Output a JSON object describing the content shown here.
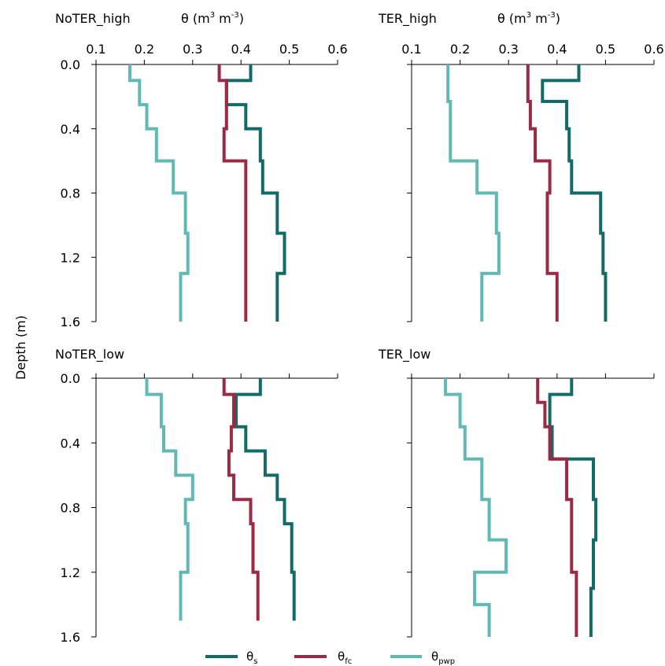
{
  "y_axis_label": "Depth (m)",
  "x_axis_label_html": {
    "base": "θ (m",
    "sup1": "3",
    "mid": " m",
    "sup2": "-3",
    "end": ")"
  },
  "legend": [
    {
      "key": "theta_s",
      "base": "θ",
      "sub": "s",
      "color": "#126b67"
    },
    {
      "key": "theta_fc",
      "base": "θ",
      "sub": "fc",
      "color": "#9a2a45"
    },
    {
      "key": "theta_pwp",
      "base": "θ",
      "sub": "pwp",
      "color": "#61b8b4"
    }
  ],
  "chart_data": [
    {
      "type": "line",
      "title": "NoTER_high",
      "xlabel": "θ (m3 m-3)",
      "ylabel": "Depth (m)",
      "xlim": [
        0.1,
        0.6
      ],
      "xticks": [
        "0.1",
        "0.2",
        "0.3",
        "0.4",
        "0.5",
        "0.6"
      ],
      "ylim": [
        0.0,
        1.6
      ],
      "yticks": [
        "0.0",
        "0.4",
        "0.8",
        "1.2",
        "1.6"
      ],
      "series": [
        {
          "name": "θs",
          "color": "#126b67",
          "x": [
            0.42,
            0.42,
            0.37,
            0.37,
            0.41,
            0.41,
            0.44,
            0.44,
            0.445,
            0.445,
            0.475,
            0.475,
            0.49,
            0.49,
            0.475,
            0.475
          ],
          "y": [
            0.0,
            0.1,
            0.1,
            0.25,
            0.25,
            0.4,
            0.4,
            0.6,
            0.6,
            0.8,
            0.8,
            1.05,
            1.05,
            1.3,
            1.3,
            1.6
          ]
        },
        {
          "name": "θfc",
          "color": "#9a2a45",
          "x": [
            0.355,
            0.355,
            0.37,
            0.37,
            0.365,
            0.365,
            0.41,
            0.41
          ],
          "y": [
            0.0,
            0.1,
            0.1,
            0.4,
            0.4,
            0.6,
            0.6,
            1.6
          ]
        },
        {
          "name": "θpwp",
          "color": "#61b8b4",
          "x": [
            0.17,
            0.17,
            0.19,
            0.19,
            0.205,
            0.205,
            0.225,
            0.225,
            0.26,
            0.26,
            0.285,
            0.285,
            0.29,
            0.29,
            0.275,
            0.275
          ],
          "y": [
            0.0,
            0.1,
            0.1,
            0.25,
            0.25,
            0.4,
            0.4,
            0.6,
            0.6,
            0.8,
            0.8,
            1.05,
            1.05,
            1.3,
            1.3,
            1.6
          ]
        }
      ]
    },
    {
      "type": "line",
      "title": "TER_high",
      "xlabel": "θ (m3 m-3)",
      "ylabel": "Depth (m)",
      "xlim": [
        0.1,
        0.6
      ],
      "xticks": [
        "0.1",
        "0.2",
        "0.3",
        "0.4",
        "0.5",
        "0.6"
      ],
      "ylim": [
        0.0,
        1.6
      ],
      "yticks": [
        "0.0",
        "0.4",
        "0.8",
        "1.2",
        "1.6"
      ],
      "series": [
        {
          "name": "θs",
          "color": "#126b67",
          "x": [
            0.445,
            0.445,
            0.37,
            0.37,
            0.42,
            0.42,
            0.425,
            0.425,
            0.43,
            0.43,
            0.49,
            0.49,
            0.495,
            0.495,
            0.5,
            0.5
          ],
          "y": [
            0.0,
            0.1,
            0.1,
            0.23,
            0.23,
            0.4,
            0.4,
            0.6,
            0.6,
            0.8,
            0.8,
            1.05,
            1.05,
            1.3,
            1.3,
            1.6
          ]
        },
        {
          "name": "θfc",
          "color": "#9a2a45",
          "x": [
            0.34,
            0.34,
            0.345,
            0.345,
            0.355,
            0.355,
            0.385,
            0.385,
            0.38,
            0.38,
            0.4,
            0.4
          ],
          "y": [
            0.0,
            0.23,
            0.23,
            0.4,
            0.4,
            0.6,
            0.6,
            0.8,
            0.8,
            1.3,
            1.3,
            1.6
          ]
        },
        {
          "name": "θpwp",
          "color": "#61b8b4",
          "x": [
            0.175,
            0.175,
            0.175,
            0.18,
            0.18,
            0.235,
            0.235,
            0.275,
            0.275,
            0.28,
            0.28,
            0.245,
            0.245
          ],
          "y": [
            0.0,
            0.23,
            0.23,
            0.23,
            0.6,
            0.6,
            0.8,
            0.8,
            1.05,
            1.05,
            1.3,
            1.3,
            1.6
          ]
        }
      ]
    },
    {
      "type": "line",
      "title": "NoTER_low",
      "xlabel": "",
      "ylabel": "Depth (m)",
      "xlim": [
        0.1,
        0.6
      ],
      "xticks": [],
      "ylim": [
        0.0,
        1.6
      ],
      "yticks": [
        "0.0",
        "0.4",
        "0.8",
        "1.2",
        "1.6"
      ],
      "series": [
        {
          "name": "θs",
          "color": "#126b67",
          "x": [
            0.44,
            0.44,
            0.39,
            0.39,
            0.41,
            0.41,
            0.45,
            0.45,
            0.475,
            0.475,
            0.49,
            0.49,
            0.505,
            0.505,
            0.51,
            0.51
          ],
          "y": [
            0.0,
            0.1,
            0.1,
            0.3,
            0.3,
            0.45,
            0.45,
            0.6,
            0.6,
            0.75,
            0.75,
            0.9,
            0.9,
            1.2,
            1.2,
            1.5
          ]
        },
        {
          "name": "θfc",
          "color": "#9a2a45",
          "x": [
            0.365,
            0.365,
            0.385,
            0.385,
            0.38,
            0.38,
            0.375,
            0.375,
            0.385,
            0.385,
            0.42,
            0.42,
            0.425,
            0.425,
            0.435,
            0.435
          ],
          "y": [
            0.0,
            0.1,
            0.1,
            0.3,
            0.3,
            0.45,
            0.45,
            0.6,
            0.6,
            0.75,
            0.75,
            0.9,
            0.9,
            1.2,
            1.2,
            1.5
          ]
        },
        {
          "name": "θpwp",
          "color": "#61b8b4",
          "x": [
            0.205,
            0.205,
            0.235,
            0.235,
            0.24,
            0.24,
            0.265,
            0.265,
            0.3,
            0.3,
            0.285,
            0.285,
            0.29,
            0.29,
            0.275,
            0.275
          ],
          "y": [
            0.0,
            0.1,
            0.1,
            0.3,
            0.3,
            0.45,
            0.45,
            0.6,
            0.6,
            0.75,
            0.75,
            0.9,
            0.9,
            1.2,
            1.2,
            1.5
          ]
        }
      ]
    },
    {
      "type": "line",
      "title": "TER_low",
      "xlabel": "",
      "ylabel": "Depth (m)",
      "xlim": [
        0.1,
        0.6
      ],
      "xticks": [],
      "ylim": [
        0.0,
        1.6
      ],
      "yticks": [
        "0.0",
        "0.4",
        "0.8",
        "1.2",
        "1.6"
      ],
      "series": [
        {
          "name": "θs",
          "color": "#126b67",
          "x": [
            0.43,
            0.43,
            0.385,
            0.385,
            0.39,
            0.39,
            0.475,
            0.475,
            0.48,
            0.48,
            0.475,
            0.475,
            0.47,
            0.47
          ],
          "y": [
            0.0,
            0.1,
            0.1,
            0.3,
            0.3,
            0.5,
            0.5,
            0.75,
            0.75,
            1.0,
            1.0,
            1.3,
            1.3,
            1.6
          ]
        },
        {
          "name": "θfc",
          "color": "#9a2a45",
          "x": [
            0.36,
            0.36,
            0.375,
            0.375,
            0.385,
            0.385,
            0.42,
            0.42,
            0.43,
            0.43,
            0.44,
            0.44
          ],
          "y": [
            0.0,
            0.15,
            0.15,
            0.3,
            0.3,
            0.5,
            0.5,
            0.75,
            0.75,
            1.2,
            1.2,
            1.6
          ]
        },
        {
          "name": "θpwp",
          "color": "#61b8b4",
          "x": [
            0.17,
            0.17,
            0.2,
            0.2,
            0.21,
            0.21,
            0.245,
            0.245,
            0.26,
            0.26,
            0.265,
            0.265,
            0.295,
            0.295,
            0.23,
            0.23,
            0.26,
            0.26
          ],
          "y": [
            0.0,
            0.1,
            0.1,
            0.3,
            0.3,
            0.5,
            0.5,
            0.75,
            0.75,
            1.0,
            1.0,
            1.0,
            1.0,
            1.2,
            1.2,
            1.4,
            1.4,
            1.6
          ]
        }
      ]
    }
  ]
}
